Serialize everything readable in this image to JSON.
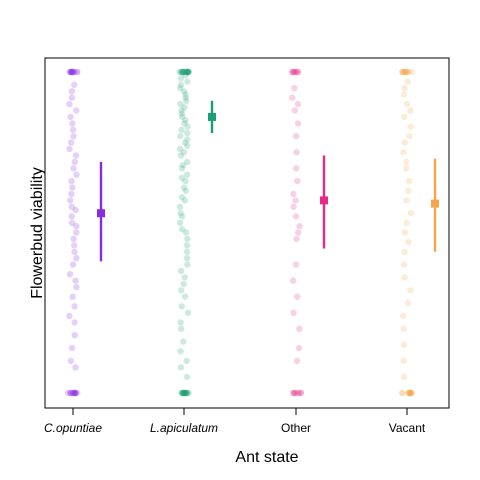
{
  "chart_data": {
    "type": "scatter",
    "subtype": "jittered strip plot with point estimate and interval",
    "xlabel": "Ant state",
    "ylabel": "Flowerbud viability",
    "ylim": [
      0,
      1
    ],
    "y_ticks_shown": false,
    "grid": false,
    "legend": "none",
    "categories": [
      "C.opuntiae",
      "L.apiculatum",
      "Other",
      "Vacant"
    ],
    "category_italic": [
      true,
      true,
      false,
      false
    ],
    "series": [
      {
        "category": "C.opuntiae",
        "color": "#8a2be2",
        "estimate": 0.56,
        "lower": 0.41,
        "upper": 0.72,
        "points": [
          0.0,
          0.0,
          0.0,
          0.0,
          0.0,
          0.0,
          0.0,
          0.0,
          0.0,
          0.0,
          0.0,
          0.0,
          0.08,
          0.1,
          0.14,
          0.18,
          0.22,
          0.24,
          0.27,
          0.3,
          0.33,
          0.35,
          0.37,
          0.4,
          0.42,
          0.44,
          0.46,
          0.48,
          0.5,
          0.52,
          0.53,
          0.55,
          0.57,
          0.58,
          0.6,
          0.62,
          0.64,
          0.66,
          0.68,
          0.7,
          0.72,
          0.74,
          0.76,
          0.78,
          0.8,
          0.82,
          0.84,
          0.86,
          0.88,
          0.9,
          0.92,
          0.94,
          0.96,
          1.0,
          1.0,
          1.0,
          1.0,
          1.0,
          1.0,
          1.0,
          1.0,
          1.0,
          1.0,
          1.0,
          1.0
        ]
      },
      {
        "category": "L.apiculatum",
        "color": "#1b9e77",
        "estimate": 0.86,
        "lower": 0.81,
        "upper": 0.91,
        "points": [
          0.0,
          0.0,
          0.0,
          0.0,
          0.0,
          0.0,
          0.0,
          0.0,
          0.0,
          0.0,
          0.0,
          0.0,
          0.0,
          0.0,
          0.0,
          0.0,
          0.05,
          0.08,
          0.1,
          0.13,
          0.16,
          0.2,
          0.22,
          0.25,
          0.27,
          0.3,
          0.32,
          0.34,
          0.36,
          0.38,
          0.4,
          0.42,
          0.44,
          0.46,
          0.48,
          0.5,
          0.51,
          0.53,
          0.55,
          0.56,
          0.58,
          0.6,
          0.61,
          0.63,
          0.64,
          0.66,
          0.67,
          0.68,
          0.7,
          0.71,
          0.72,
          0.74,
          0.75,
          0.76,
          0.77,
          0.78,
          0.79,
          0.8,
          0.81,
          0.82,
          0.83,
          0.84,
          0.85,
          0.86,
          0.87,
          0.88,
          0.89,
          0.9,
          0.91,
          0.92,
          0.93,
          0.94,
          0.95,
          0.96,
          0.97,
          0.98,
          0.99,
          1.0,
          1.0,
          1.0,
          1.0,
          1.0,
          1.0,
          1.0,
          1.0,
          1.0,
          1.0,
          1.0,
          1.0,
          1.0,
          1.0,
          1.0,
          1.0,
          1.0,
          1.0
        ]
      },
      {
        "category": "Other",
        "color": "#e7298a",
        "estimate": 0.6,
        "lower": 0.45,
        "upper": 0.74,
        "points": [
          0.0,
          0.0,
          0.0,
          0.0,
          0.0,
          0.0,
          0.0,
          0.0,
          0.1,
          0.14,
          0.2,
          0.25,
          0.3,
          0.35,
          0.4,
          0.48,
          0.5,
          0.52,
          0.55,
          0.58,
          0.6,
          0.62,
          0.66,
          0.7,
          0.75,
          0.8,
          0.84,
          0.88,
          0.9,
          0.92,
          0.95,
          1.0,
          1.0,
          1.0,
          1.0,
          1.0,
          1.0,
          1.0,
          1.0
        ]
      },
      {
        "category": "Vacant",
        "color": "#f5a54a",
        "estimate": 0.59,
        "lower": 0.44,
        "upper": 0.73,
        "points": [
          0.0,
          0.0,
          0.0,
          0.0,
          0.0,
          0.0,
          0.0,
          0.0,
          0.0,
          0.0,
          0.0,
          0.0,
          0.05,
          0.1,
          0.15,
          0.2,
          0.24,
          0.28,
          0.32,
          0.36,
          0.4,
          0.44,
          0.47,
          0.5,
          0.53,
          0.56,
          0.6,
          0.63,
          0.66,
          0.7,
          0.72,
          0.75,
          0.78,
          0.8,
          0.83,
          0.86,
          0.88,
          0.9,
          0.93,
          0.95,
          0.97,
          1.0,
          1.0,
          1.0,
          1.0,
          1.0,
          1.0,
          1.0,
          1.0,
          1.0,
          1.0,
          1.0
        ]
      }
    ]
  }
}
